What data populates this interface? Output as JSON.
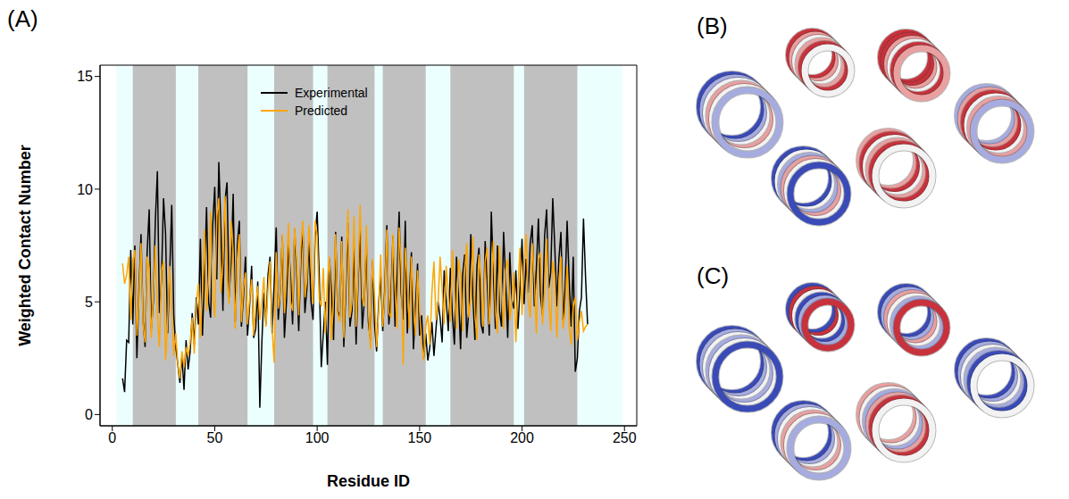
{
  "panel_labels": [
    "(A)",
    "(B)",
    "(C)"
  ],
  "chart_data": {
    "type": "line",
    "x_label": "Residue ID",
    "y_label": "Weighted Contact Number",
    "x": [
      5,
      6,
      7,
      8,
      9,
      10,
      11,
      12,
      13,
      14,
      15,
      16,
      17,
      18,
      19,
      20,
      21,
      22,
      23,
      24,
      25,
      26,
      27,
      28,
      29,
      30,
      31,
      32,
      33,
      34,
      35,
      36,
      37,
      38,
      39,
      40,
      41,
      42,
      43,
      44,
      45,
      46,
      47,
      48,
      49,
      50,
      51,
      52,
      53,
      54,
      55,
      56,
      57,
      58,
      59,
      60,
      61,
      62,
      63,
      64,
      65,
      66,
      67,
      68,
      69,
      70,
      71,
      72,
      73,
      74,
      75,
      76,
      77,
      78,
      79,
      80,
      81,
      82,
      83,
      84,
      85,
      86,
      87,
      88,
      89,
      90,
      91,
      92,
      93,
      94,
      95,
      96,
      97,
      98,
      99,
      100,
      101,
      102,
      103,
      104,
      105,
      106,
      107,
      108,
      109,
      110,
      111,
      112,
      113,
      114,
      115,
      116,
      117,
      118,
      119,
      120,
      121,
      122,
      123,
      124,
      125,
      126,
      127,
      128,
      129,
      130,
      131,
      132,
      133,
      134,
      135,
      136,
      137,
      138,
      139,
      140,
      141,
      142,
      143,
      144,
      145,
      146,
      147,
      148,
      149,
      150,
      151,
      152,
      153,
      154,
      155,
      156,
      157,
      158,
      159,
      160,
      161,
      162,
      163,
      164,
      165,
      166,
      167,
      168,
      169,
      170,
      171,
      172,
      173,
      174,
      175,
      176,
      177,
      178,
      179,
      180,
      181,
      182,
      183,
      184,
      185,
      186,
      187,
      188,
      189,
      190,
      191,
      192,
      193,
      194,
      195,
      196,
      197,
      198,
      199,
      200,
      201,
      202,
      203,
      204,
      205,
      206,
      207,
      208,
      209,
      210,
      211,
      212,
      213,
      214,
      215,
      216,
      217,
      218,
      219,
      220,
      221,
      222,
      223,
      224,
      225,
      226,
      227,
      228,
      229,
      230,
      231,
      232
    ],
    "series": [
      {
        "name": "Experimental",
        "color": "#000000",
        "values": [
          1.6,
          1.0,
          3.3,
          3.2,
          7.3,
          4.0,
          7.5,
          2.5,
          5.5,
          8.0,
          4.2,
          3.0,
          7.2,
          9.1,
          3.8,
          5.0,
          8.6,
          10.8,
          4.5,
          6.0,
          9.6,
          8.0,
          3.6,
          6.2,
          9.3,
          4.4,
          3.0,
          2.2,
          1.4,
          2.6,
          1.1,
          3.3,
          2.0,
          2.8,
          4.5,
          3.1,
          5.2,
          4.0,
          7.8,
          3.5,
          6.2,
          9.2,
          5.0,
          4.3,
          8.4,
          10.1,
          6.0,
          11.2,
          8.3,
          4.6,
          9.5,
          10.3,
          5.2,
          6.8,
          9.8,
          4.1,
          7.5,
          8.6,
          3.9,
          5.2,
          7.0,
          3.5,
          4.8,
          6.6,
          3.4,
          3.8,
          5.9,
          0.3,
          3.2,
          5.4,
          4.0,
          6.2,
          7.0,
          3.6,
          5.8,
          8.3,
          4.2,
          5.5,
          7.9,
          3.4,
          5.0,
          7.6,
          6.1,
          4.0,
          8.2,
          6.3,
          3.7,
          6.8,
          8.4,
          4.5,
          5.6,
          7.7,
          5.0,
          4.2,
          8.0,
          9.0,
          6.2,
          2.1,
          3.6,
          5.0,
          2.2,
          6.9,
          5.4,
          3.3,
          8.1,
          4.6,
          4.3,
          7.9,
          3.0,
          5.5,
          8.5,
          3.9,
          4.6,
          7.4,
          3.1,
          6.0,
          8.2,
          3.8,
          5.0,
          7.6,
          4.1,
          3.3,
          6.8,
          4.0,
          2.8,
          4.9,
          6.2,
          3.7,
          5.6,
          8.4,
          4.0,
          5.2,
          7.9,
          3.9,
          6.1,
          9.0,
          5.4,
          4.2,
          8.6,
          3.6,
          5.3,
          7.2,
          2.9,
          4.8,
          6.7,
          3.5,
          4.4,
          2.5,
          3.6,
          2.4,
          3.0,
          4.1,
          2.6,
          3.8,
          5.0,
          4.3,
          3.2,
          6.4,
          5.1,
          3.7,
          6.5,
          4.4,
          3.1,
          7.0,
          5.3,
          2.9,
          6.2,
          7.1,
          3.4,
          4.6,
          8.0,
          5.2,
          3.3,
          6.6,
          7.4,
          4.0,
          3.6,
          7.7,
          5.9,
          3.5,
          9.0,
          6.3,
          3.8,
          7.5,
          4.6,
          3.9,
          8.1,
          6.0,
          3.4,
          7.2,
          5.1,
          4.7,
          6.4,
          3.8,
          5.6,
          7.8,
          4.9,
          6.9,
          5.4,
          7.6,
          8.4,
          4.8,
          6.5,
          8.7,
          5.3,
          4.4,
          7.9,
          9.1,
          5.6,
          6.3,
          9.6,
          7.4,
          4.8,
          6.9,
          8.1,
          4.2,
          5.5,
          8.6,
          6.0,
          3.9,
          7.0,
          1.9,
          2.5,
          4.6,
          5.2,
          8.7,
          6.1,
          4.0
        ]
      },
      {
        "name": "Predicted",
        "color": "#ffa500",
        "values": [
          6.7,
          5.8,
          6.2,
          7.0,
          4.2,
          6.8,
          7.3,
          3.5,
          5.1,
          7.6,
          4.0,
          3.2,
          7.0,
          6.5,
          3.4,
          5.3,
          7.5,
          4.5,
          3.0,
          6.4,
          6.8,
          2.4,
          4.1,
          6.6,
          4.7,
          2.6,
          3.6,
          2.2,
          1.6,
          2.8,
          2.1,
          3.0,
          2.6,
          3.2,
          4.3,
          2.7,
          4.9,
          5.8,
          3.4,
          5.5,
          8.2,
          4.6,
          6.0,
          9.0,
          5.2,
          4.3,
          8.8,
          9.6,
          5.4,
          6.7,
          9.7,
          6.0,
          4.9,
          8.6,
          7.1,
          3.8,
          6.9,
          8.0,
          4.1,
          5.6,
          6.3,
          4.0,
          5.1,
          6.0,
          3.5,
          4.8,
          5.7,
          4.2,
          5.0,
          6.1,
          3.9,
          5.6,
          6.8,
          3.8,
          2.3,
          7.2,
          4.7,
          5.4,
          8.0,
          4.5,
          6.2,
          8.5,
          5.0,
          4.6,
          8.3,
          6.8,
          4.4,
          7.4,
          8.6,
          5.2,
          6.0,
          8.4,
          6.5,
          4.9,
          8.6,
          7.9,
          5.1,
          4.8,
          6.5,
          3.6,
          5.9,
          7.0,
          3.3,
          5.2,
          8.0,
          4.5,
          4.1,
          7.7,
          3.4,
          6.1,
          9.1,
          4.3,
          5.0,
          8.8,
          3.9,
          6.3,
          9.3,
          5.2,
          4.8,
          8.4,
          4.6,
          2.9,
          6.9,
          5.3,
          3.0,
          4.6,
          7.1,
          3.9,
          5.3,
          8.2,
          4.5,
          4.3,
          8.0,
          5.6,
          3.8,
          8.3,
          6.6,
          2.2,
          7.4,
          6.0,
          3.8,
          7.0,
          5.1,
          3.5,
          6.4,
          4.6,
          3.2,
          2.4,
          3.9,
          4.4,
          3.1,
          5.4,
          6.8,
          4.2,
          4.9,
          7.0,
          5.6,
          4.0,
          6.6,
          5.3,
          4.1,
          7.3,
          5.5,
          3.8,
          6.9,
          6.2,
          3.7,
          6.5,
          7.6,
          4.3,
          5.2,
          7.9,
          4.4,
          3.3,
          7.1,
          6.0,
          3.9,
          6.8,
          7.4,
          4.0,
          5.5,
          7.7,
          4.6,
          3.6,
          7.5,
          5.8,
          3.8,
          6.4,
          6.9,
          4.2,
          5.0,
          6.3,
          3.2,
          5.6,
          7.4,
          4.4,
          6.8,
          8.0,
          5.1,
          4.3,
          7.6,
          6.0,
          3.6,
          6.9,
          7.2,
          4.0,
          5.4,
          7.8,
          5.2,
          3.7,
          6.8,
          6.1,
          3.4,
          5.9,
          7.0,
          3.8,
          4.5,
          6.6,
          3.9,
          3.1,
          4.8,
          5.2,
          3.3,
          4.1,
          4.6,
          3.7,
          3.9,
          4.0
        ]
      }
    ],
    "xlim": [
      -6,
      256
    ],
    "ylim": [
      -0.5,
      15.5
    ],
    "xticks": [
      0,
      50,
      100,
      150,
      200,
      250
    ],
    "yticks": [
      0,
      5,
      10,
      15
    ],
    "legend": "top",
    "grid": false,
    "shaded_regions": [
      [
        10,
        31
      ],
      [
        42,
        66
      ],
      [
        79,
        98
      ],
      [
        105,
        128
      ],
      [
        132,
        153
      ],
      [
        165,
        196
      ],
      [
        201,
        227
      ]
    ],
    "background_region": [
      2,
      249
    ]
  }
}
